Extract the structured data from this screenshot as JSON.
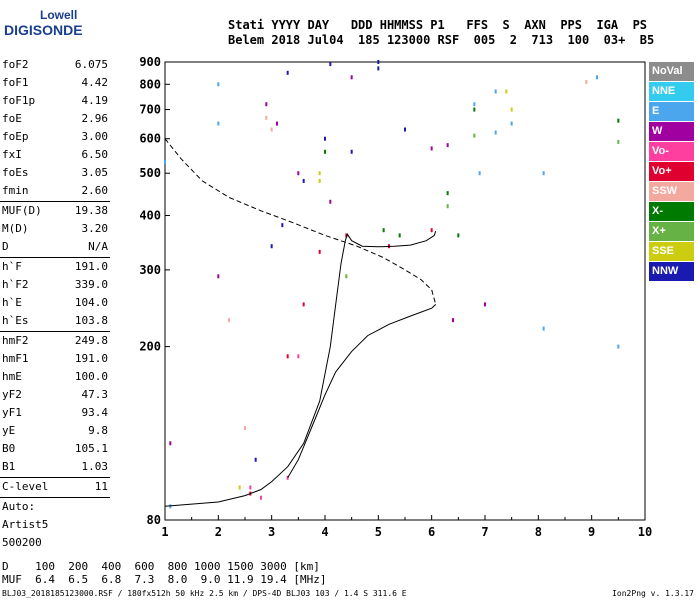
{
  "logo": {
    "line1": "Lowell",
    "line2": "DIGISONDE"
  },
  "header": {
    "line1": "Stati YYYY DAY   DDD HHMMSS P1   FFS  S  AXN  PPS  IGA  PS",
    "line2": "Belem 2018 Jul04  185 123000 RSF  005  2  713  100  03+  B5"
  },
  "params": [
    {
      "k": "foF2",
      "v": "6.075"
    },
    {
      "k": "foF1",
      "v": "4.42"
    },
    {
      "k": "foF1p",
      "v": "4.19"
    },
    {
      "k": "foE",
      "v": "2.96"
    },
    {
      "k": "foEp",
      "v": "3.00"
    },
    {
      "k": "fxI",
      "v": "6.50"
    },
    {
      "k": "foEs",
      "v": "3.05"
    },
    {
      "k": "fmin",
      "v": "2.60"
    },
    {
      "sep": true
    },
    {
      "k": "MUF(D)",
      "v": "19.38"
    },
    {
      "k": "M(D)",
      "v": "3.20"
    },
    {
      "k": "D",
      "v": "N/A"
    },
    {
      "sep": true
    },
    {
      "k": "h`F",
      "v": "191.0"
    },
    {
      "k": "h`F2",
      "v": "339.0"
    },
    {
      "k": "h`E",
      "v": "104.0"
    },
    {
      "k": "h`Es",
      "v": "103.8"
    },
    {
      "sep": true
    },
    {
      "k": "hmF2",
      "v": "249.8"
    },
    {
      "k": "hmF1",
      "v": "191.0"
    },
    {
      "k": "hmE",
      "v": "100.0"
    },
    {
      "k": "yF2",
      "v": "47.3"
    },
    {
      "k": "yF1",
      "v": "93.4"
    },
    {
      "k": "yE",
      "v": "9.8"
    },
    {
      "k": "B0",
      "v": "105.1"
    },
    {
      "k": "B1",
      "v": "1.03"
    },
    {
      "sep": true
    },
    {
      "k": "C-level",
      "v": "11"
    },
    {
      "sep": true
    },
    {
      "k": "Auto:",
      "v": ""
    },
    {
      "k": "Artist5",
      "v": ""
    },
    {
      "k": "500200",
      "v": ""
    }
  ],
  "legend": [
    {
      "label": "NoVal",
      "color": "#8c8c8c"
    },
    {
      "label": "NNE",
      "color": "#33ccee"
    },
    {
      "label": "E",
      "color": "#4ca6ee"
    },
    {
      "label": "W",
      "color": "#a000a0"
    },
    {
      "label": "Vo-",
      "color": "#ff3fa0"
    },
    {
      "label": "Vo+",
      "color": "#e00030"
    },
    {
      "label": "SSW",
      "color": "#f3a8a0"
    },
    {
      "label": "X-",
      "color": "#007a00"
    },
    {
      "label": "X+",
      "color": "#66b244"
    },
    {
      "label": "SSE",
      "color": "#cccc10"
    },
    {
      "label": "NNW",
      "color": "#1a1ab0"
    }
  ],
  "bottom": {
    "line1": "D    100  200  400  600  800 1000 1500 3000 [km]",
    "line2": "MUF  6.4  6.5  6.8  7.3  8.0  9.0 11.9 19.4 [MHz]"
  },
  "footer": "BLJ03_2018185123000.RSF / 180fx512h 50 kHz 2.5 km / DPS-4D BLJ03 103 / 1.4 S 311.6 E",
  "version": "Ion2Png v. 1.3.17",
  "chart_data": {
    "type": "scatter",
    "title": "",
    "xlabel": "",
    "ylabel": "",
    "xlim": [
      1,
      10
    ],
    "ylim": [
      80,
      900
    ],
    "xticks": [
      "1",
      "2",
      "3",
      "4",
      "5",
      "6",
      "7",
      "8",
      "9",
      "10"
    ],
    "yticks": [
      "80",
      "200",
      "300",
      "400",
      "500",
      "600",
      "700",
      "800",
      "900"
    ],
    "yscale": "log",
    "grid": false,
    "series": [
      {
        "style": "solid",
        "x": [
          1.0,
          1.5,
          2.0,
          2.5,
          2.8,
          3.0,
          3.3,
          3.6,
          3.9,
          4.1,
          4.2,
          4.3,
          4.38,
          4.42,
          4.5,
          4.7,
          5.0,
          5.3,
          5.6,
          5.9,
          6.05,
          6.075
        ],
        "y": [
          86,
          87,
          88,
          91,
          94,
          98,
          106,
          120,
          150,
          200,
          250,
          310,
          350,
          362,
          350,
          340,
          339,
          340,
          342,
          350,
          360,
          368
        ]
      },
      {
        "style": "solid",
        "x": [
          3.3,
          3.5,
          3.8,
          4.0,
          4.2,
          4.5,
          4.8,
          5.2,
          5.6,
          6.0,
          6.075
        ],
        "y": [
          100,
          110,
          135,
          155,
          175,
          195,
          212,
          225,
          235,
          245,
          250
        ]
      },
      {
        "style": "dashed",
        "x": [
          1.0,
          1.3,
          1.7,
          2.2,
          2.8,
          3.4,
          4.0,
          4.6,
          5.1,
          5.5,
          5.8,
          6.0,
          6.075
        ],
        "y": [
          600,
          540,
          480,
          440,
          410,
          385,
          360,
          340,
          320,
          300,
          285,
          270,
          250
        ]
      }
    ],
    "scatter_groups": [
      {
        "name": "W",
        "color": "#a000a0",
        "x": [
          1.1,
          2.0,
          2.9,
          3.1,
          3.5,
          4.1,
          4.5,
          6.0,
          6.3,
          6.4,
          7.0
        ],
        "y": [
          120,
          290,
          720,
          650,
          500,
          430,
          830,
          570,
          580,
          230,
          250
        ]
      },
      {
        "name": "NNW",
        "color": "#1a1ab0",
        "x": [
          3.2,
          3.3,
          3.6,
          4.0,
          4.1,
          4.5,
          5.0,
          5.5,
          5.0,
          3.0,
          2.7
        ],
        "y": [
          380,
          850,
          480,
          600,
          890,
          560,
          900,
          630,
          870,
          340,
          110
        ]
      },
      {
        "name": "E",
        "color": "#4ca6ee",
        "x": [
          2.0,
          2.0,
          6.8,
          6.9,
          7.2,
          7.2,
          7.5,
          8.1,
          8.1,
          9.5,
          9.1,
          1.1,
          1.0
        ],
        "y": [
          800,
          650,
          720,
          500,
          770,
          620,
          650,
          500,
          220,
          200,
          830,
          86,
          530
        ]
      },
      {
        "name": "Vo+",
        "color": "#e00030",
        "x": [
          3.3,
          3.6,
          3.9,
          4.4,
          5.2,
          6.0,
          2.6
        ],
        "y": [
          190,
          250,
          330,
          360,
          340,
          370,
          92
        ]
      },
      {
        "name": "X-",
        "color": "#007a00",
        "x": [
          4.0,
          5.1,
          5.4,
          6.3,
          6.5,
          6.8,
          9.5
        ],
        "y": [
          560,
          370,
          360,
          450,
          360,
          700,
          660
        ]
      },
      {
        "name": "X+",
        "color": "#66b244",
        "x": [
          4.4,
          6.3,
          6.8,
          9.5
        ],
        "y": [
          290,
          420,
          610,
          590
        ]
      },
      {
        "name": "SSE",
        "color": "#cccc10",
        "x": [
          3.9,
          7.4,
          7.5,
          2.4,
          3.9
        ],
        "y": [
          500,
          770,
          700,
          95,
          480
        ]
      },
      {
        "name": "SSW",
        "color": "#f3a8a0",
        "x": [
          2.2,
          2.9,
          3.0,
          2.5,
          8.9
        ],
        "y": [
          230,
          670,
          630,
          130,
          810
        ]
      },
      {
        "name": "Vo-",
        "color": "#ff3fa0",
        "x": [
          2.6,
          2.8,
          3.3,
          3.5
        ],
        "y": [
          95,
          90,
          100,
          190
        ]
      }
    ]
  }
}
